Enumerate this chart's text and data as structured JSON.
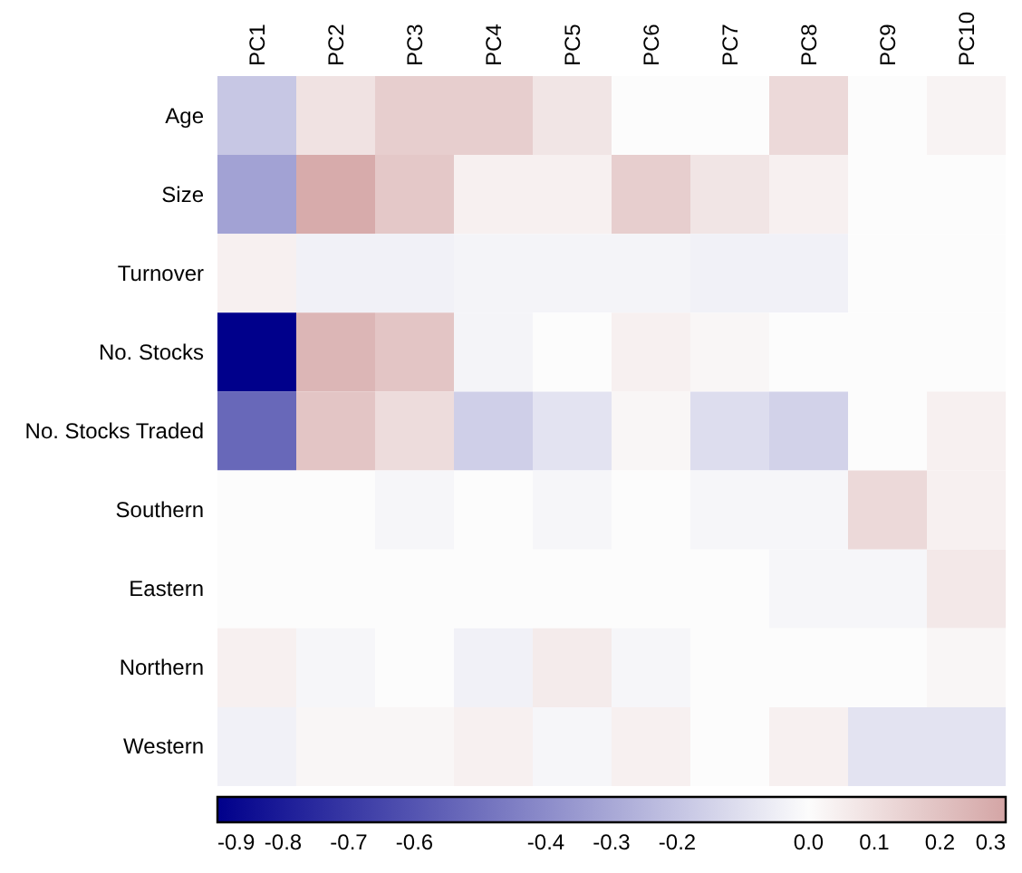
{
  "chart_data": {
    "type": "heatmap",
    "categories": [
      "PC1",
      "PC2",
      "PC3",
      "PC4",
      "PC5",
      "PC6",
      "PC7",
      "PC8",
      "PC9",
      "PC10"
    ],
    "y_categories": [
      "Age",
      "Size",
      "Turnover",
      "No. Stocks",
      "No. Stocks Traded",
      "Southern",
      "Eastern",
      "Northern",
      "Western"
    ],
    "cells": [
      [
        -0.19,
        0.09,
        0.16,
        0.16,
        0.08,
        0,
        0,
        0.12,
        0,
        0.03
      ],
      [
        -0.32,
        0.28,
        0.18,
        0.04,
        0.04,
        0.16,
        0.08,
        0.04,
        0,
        0
      ],
      [
        0.04,
        -0.04,
        -0.04,
        -0.03,
        -0.03,
        -0.03,
        -0.04,
        -0.04,
        0,
        0
      ],
      [
        -0.9,
        0.24,
        0.19,
        -0.03,
        0,
        0.04,
        0.02,
        0,
        0,
        0
      ],
      [
        -0.53,
        0.19,
        0.11,
        -0.16,
        -0.09,
        0.02,
        -0.11,
        -0.15,
        0,
        0.04
      ],
      [
        0,
        0,
        -0.02,
        0,
        -0.02,
        0,
        -0.02,
        -0.02,
        0.12,
        0.04
      ],
      [
        0,
        0,
        0,
        0,
        0,
        0,
        0,
        -0.02,
        -0.02,
        0.07
      ],
      [
        0.04,
        -0.02,
        0,
        -0.04,
        0.06,
        -0.02,
        0,
        0,
        0,
        0.02
      ],
      [
        -0.04,
        0.02,
        0.02,
        0.04,
        -0.02,
        0.04,
        0,
        0.04,
        -0.09,
        -0.09
      ]
    ],
    "clim": [
      -0.9,
      0.3
    ],
    "cticks": [
      -0.9,
      -0.8,
      -0.7,
      -0.6,
      -0.4,
      -0.3,
      -0.2,
      {
        "value": 0,
        "label": "0.0"
      },
      0.1,
      0.2,
      0.3
    ]
  }
}
